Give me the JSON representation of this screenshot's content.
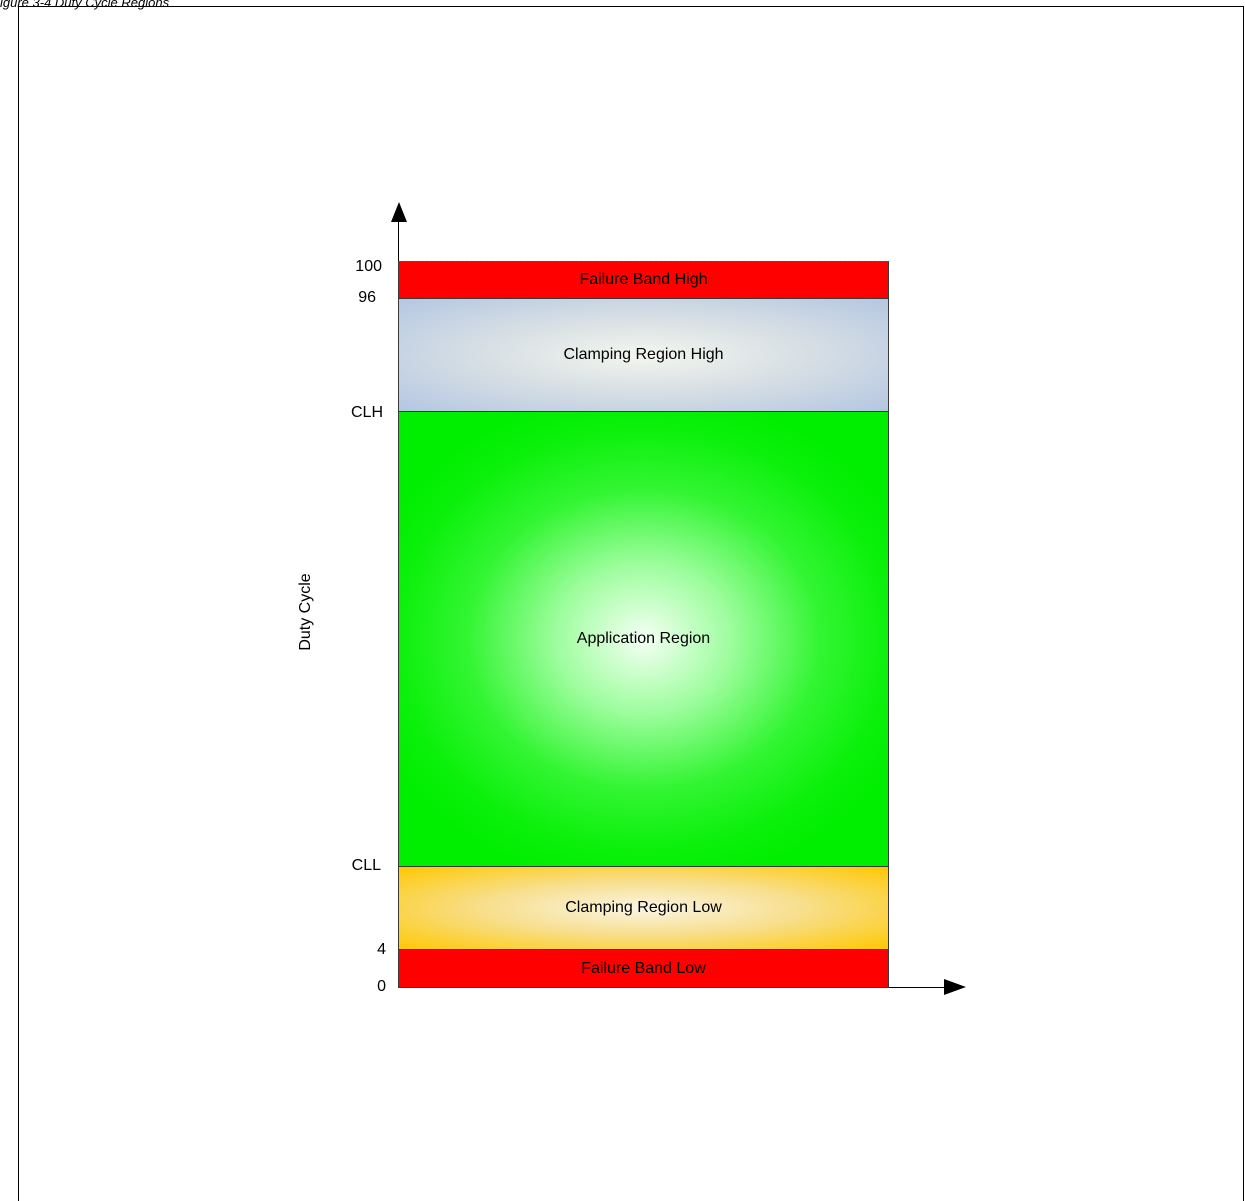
{
  "caption": "igure 3-4 Duty Cycle Regions",
  "ylabel": "Duty Cycle",
  "ticks": {
    "t100": "100",
    "t96": "96",
    "tclh": "CLH",
    "tcll": "CLL",
    "t4": "4",
    "t0": "0"
  },
  "regions": {
    "failure_high": "Failure Band High",
    "clamping_high": "Clamping Region High",
    "application": "Application Region",
    "clamping_low": "Clamping Region Low",
    "failure_low": "Failure Band Low"
  },
  "colors": {
    "failure": "#ff0000",
    "clamping_high": "#b4c6e2",
    "application": "#00ee00",
    "clamping_low": "#ffc800"
  }
}
